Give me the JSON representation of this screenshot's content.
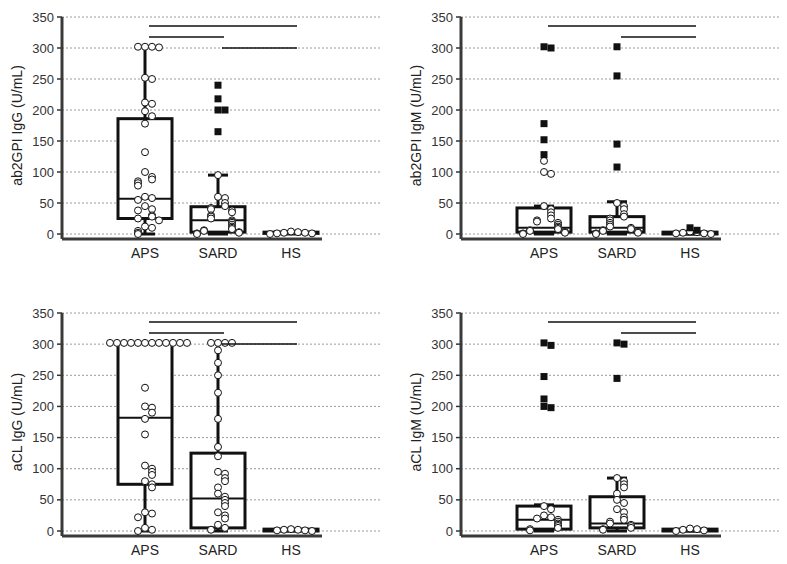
{
  "chart_data": [
    {
      "type": "box",
      "y_label": "ab2GPI IgG (U/mL)",
      "categories": [
        "APS",
        "SARD",
        "HS"
      ],
      "ylim": [
        -8,
        350
      ],
      "yticks": [
        0,
        50,
        100,
        150,
        200,
        250,
        300,
        350
      ],
      "grid": true,
      "boxes": [
        {
          "whisker_low": 0,
          "q1": 25,
          "median": 57,
          "q3": 186,
          "whisker_high": 302,
          "outliers": [],
          "points": [
            302,
            302,
            302,
            301,
            252,
            250,
            212,
            210,
            198,
            190,
            178,
            132,
            100,
            92,
            88,
            85,
            82,
            78,
            60,
            58,
            55,
            45,
            40,
            38,
            30,
            28,
            25,
            22,
            12,
            10,
            5,
            2,
            0
          ]
        },
        {
          "whisker_low": 0,
          "q1": 3,
          "median": 22,
          "q3": 44,
          "whisker_high": 95,
          "outliers": [
            240,
            218,
            200,
            200,
            165
          ],
          "points": [
            95,
            60,
            58,
            50,
            45,
            42,
            40,
            38,
            35,
            30,
            28,
            25,
            22,
            20,
            18,
            15,
            12,
            10,
            8,
            6,
            5,
            3,
            2,
            1,
            0
          ]
        },
        {
          "whisker_low": 0,
          "q1": 1,
          "median": 2,
          "q3": 3,
          "whisker_high": 4,
          "outliers": [],
          "points": [
            4,
            3,
            2,
            2,
            1,
            1,
            0
          ]
        }
      ],
      "comparisons": [
        [
          "APS",
          "HS"
        ],
        [
          "APS",
          "SARD"
        ],
        [
          "SARD",
          "HS"
        ]
      ]
    },
    {
      "type": "box",
      "y_label": "ab2GPI IgM (U/mL)",
      "categories": [
        "APS",
        "SARD",
        "HS"
      ],
      "ylim": [
        -8,
        350
      ],
      "yticks": [
        0,
        50,
        100,
        150,
        200,
        250,
        300,
        350
      ],
      "grid": true,
      "boxes": [
        {
          "whisker_low": 0,
          "q1": 3,
          "median": 10,
          "q3": 42,
          "whisker_high": 45,
          "outliers": [
            302,
            300,
            178,
            152,
            128
          ],
          "points": [
            118,
            100,
            97,
            45,
            40,
            35,
            30,
            25,
            22,
            20,
            18,
            15,
            12,
            10,
            8,
            6,
            5,
            3,
            2,
            1,
            0
          ]
        },
        {
          "whisker_low": 0,
          "q1": 3,
          "median": 10,
          "q3": 28,
          "whisker_high": 52,
          "outliers": [
            302,
            255,
            145,
            108
          ],
          "points": [
            50,
            45,
            40,
            32,
            28,
            25,
            22,
            18,
            15,
            12,
            10,
            8,
            6,
            5,
            3,
            2,
            1,
            0
          ]
        },
        {
          "whisker_low": 0,
          "q1": 0,
          "median": 1,
          "q3": 3,
          "whisker_high": 4,
          "outliers": [
            10,
            6
          ],
          "points": [
            4,
            3,
            2,
            1,
            1,
            0
          ]
        }
      ],
      "comparisons": [
        [
          "APS",
          "HS"
        ],
        [
          "SARD",
          "HS"
        ]
      ]
    },
    {
      "type": "box",
      "y_label": "aCL IgG (U/mL)",
      "categories": [
        "APS",
        "SARD",
        "HS"
      ],
      "ylim": [
        -8,
        350
      ],
      "yticks": [
        0,
        50,
        100,
        150,
        200,
        250,
        300,
        350
      ],
      "grid": true,
      "boxes": [
        {
          "whisker_low": 0,
          "q1": 75,
          "median": 182,
          "q3": 302,
          "whisker_high": 302,
          "outliers": [],
          "points": [
            302,
            302,
            302,
            302,
            302,
            302,
            302,
            302,
            302,
            302,
            302,
            302,
            230,
            200,
            198,
            190,
            180,
            155,
            105,
            100,
            95,
            90,
            80,
            75,
            70,
            30,
            28,
            22,
            5,
            2,
            0
          ]
        },
        {
          "whisker_low": 0,
          "q1": 5,
          "median": 52,
          "q3": 125,
          "whisker_high": 302,
          "outliers": [],
          "points": [
            302,
            302,
            302,
            302,
            290,
            270,
            250,
            222,
            180,
            135,
            120,
            95,
            92,
            85,
            80,
            70,
            60,
            55,
            50,
            45,
            40,
            30,
            25,
            20,
            10,
            5,
            2
          ]
        },
        {
          "whisker_low": 0,
          "q1": 0,
          "median": 1,
          "q3": 3,
          "whisker_high": 3,
          "outliers": [],
          "points": [
            3,
            2,
            2,
            1,
            1,
            0
          ]
        }
      ],
      "comparisons": [
        [
          "APS",
          "HS"
        ],
        [
          "APS",
          "SARD"
        ],
        [
          "SARD",
          "HS"
        ]
      ]
    },
    {
      "type": "box",
      "y_label": "aCL IgM (U/mL)",
      "categories": [
        "APS",
        "SARD",
        "HS"
      ],
      "ylim": [
        -8,
        350
      ],
      "yticks": [
        0,
        50,
        100,
        150,
        200,
        250,
        300,
        350
      ],
      "grid": true,
      "boxes": [
        {
          "whisker_low": 0,
          "q1": 3,
          "median": 18,
          "q3": 40,
          "whisker_high": 42,
          "outliers": [
            302,
            298,
            248,
            212,
            200,
            198
          ],
          "points": [
            40,
            35,
            25,
            22,
            20,
            18,
            15,
            12,
            10,
            8,
            5,
            3,
            1
          ]
        },
        {
          "whisker_low": 0,
          "q1": 5,
          "median": 12,
          "q3": 55,
          "whisker_high": 85,
          "outliers": [
            302,
            300,
            245
          ],
          "points": [
            85,
            80,
            75,
            70,
            60,
            50,
            45,
            35,
            30,
            22,
            18,
            15,
            12,
            10,
            8,
            5,
            3,
            2
          ]
        },
        {
          "whisker_low": 0,
          "q1": 0,
          "median": 1,
          "q3": 3,
          "whisker_high": 4,
          "outliers": [],
          "points": [
            4,
            3,
            2,
            1,
            0
          ]
        }
      ],
      "comparisons": [
        [
          "APS",
          "HS"
        ],
        [
          "SARD",
          "HS"
        ]
      ]
    }
  ]
}
